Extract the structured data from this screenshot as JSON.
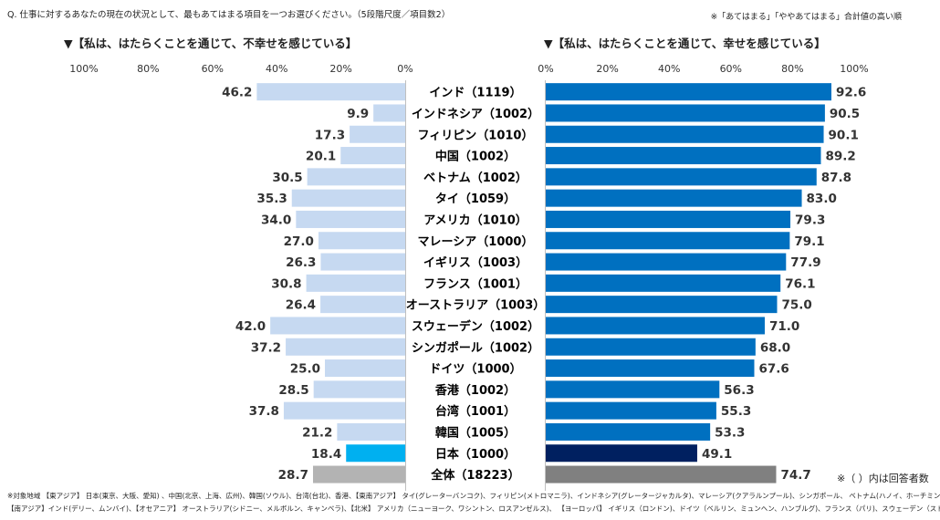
{
  "question": "Q. 仕事に対するあなたの現在の状況として、最もあてはまる項目を一つお選びください。（5段階尺度／項目数2）",
  "sort_note": "※「あてはまる」「ややあてはまる」合計値の高い順",
  "respondent_note": "※（ ）内は回答者数",
  "footnote_line1": "※対象地域 【東アジア】 日本(東京、大阪、愛知) 、中国(北京、上海、広州)、韓国(ソウル)、台湾(台北)、香港、【東南アジア】 タイ(グレーターバンコク)、フィリピン(メトロマニラ)、インドネシア(グレータージャカルタ)、マレーシア(クアラルンプール)、シンガポール、 ベトナム(ハノイ、ホーチミンシティ)",
  "footnote_line2": "【南アジア】インド(デリー、ムンバイ)、【オセアニア】 オーストラリア(シドニー、メルボルン、キャンベラ)、【北米】 アメリカ（ニューヨーク、ワシントン、ロスアンゼルス)、 【ヨーロッパ】 イギリス（ロンドン)、ドイツ（ベルリン、ミュンヘン、ハンブルグ)、フランス（パリ)、スウェーデン（ストックホルム）",
  "colors": {
    "left_bar": "#c6d9f1",
    "left_japan": "#00b0f0",
    "left_total": "#b3b3b3",
    "right_bar": "#0070c0",
    "right_japan": "#002060",
    "right_total": "#808080"
  },
  "chart_data": {
    "type": "bar",
    "orientation": "horizontal-butterfly",
    "categories": [
      "インド（1119）",
      "インドネシア（1002）",
      "フィリピン（1010）",
      "中国（1002）",
      "ベトナム（1002）",
      "タイ（1059）",
      "アメリカ（1010）",
      "マレーシア（1000）",
      "イギリス（1003）",
      "フランス（1001）",
      "オーストラリア（1003）",
      "スウェーデン（1002）",
      "シンガポール（1002）",
      "ドイツ（1000）",
      "香港（1002）",
      "台湾（1001）",
      "韓国（1005）",
      "日本（1000）",
      "全体（18223）"
    ],
    "series": [
      {
        "name": "▼【私は、はたらくことを通じて、不幸せを感じている】",
        "values": [
          46.2,
          9.9,
          17.3,
          20.1,
          30.5,
          35.3,
          34.0,
          27.0,
          26.3,
          30.8,
          26.4,
          42.0,
          37.2,
          25.0,
          28.5,
          37.8,
          21.2,
          18.4,
          28.7
        ],
        "labels": [
          "46.2",
          "9.9",
          "17.3",
          "20.1",
          "30.5",
          "35.3",
          "34.0",
          "27.0",
          "26.3",
          "30.8",
          "26.4",
          "42.0",
          "37.2",
          "25.0",
          "28.5",
          "37.8",
          "21.2",
          "18.4",
          "28.7"
        ],
        "xlim": [
          100,
          0
        ],
        "ticks": [
          "100%",
          "80%",
          "60%",
          "40%",
          "20%",
          "0%"
        ]
      },
      {
        "name": "▼【私は、はたらくことを通じて、幸せを感じている】",
        "values": [
          92.6,
          90.5,
          90.1,
          89.2,
          87.8,
          83.0,
          79.3,
          79.1,
          77.9,
          76.1,
          75.0,
          71.0,
          68.0,
          67.6,
          56.3,
          55.3,
          53.3,
          49.1,
          74.7
        ],
        "labels": [
          "92.6",
          "90.5",
          "90.1",
          "89.2",
          "87.8",
          "83.0",
          "79.3",
          "79.1",
          "77.9",
          "76.1",
          "75.0",
          "71.0",
          "68.0",
          "67.6",
          "56.3",
          "55.3",
          "53.3",
          "49.1",
          "74.7"
        ],
        "xlim": [
          0,
          100
        ],
        "ticks": [
          "0%",
          "20%",
          "40%",
          "60%",
          "80%",
          "100%"
        ]
      }
    ],
    "highlight": {
      "japan_index": 17,
      "total_index": 18
    }
  }
}
